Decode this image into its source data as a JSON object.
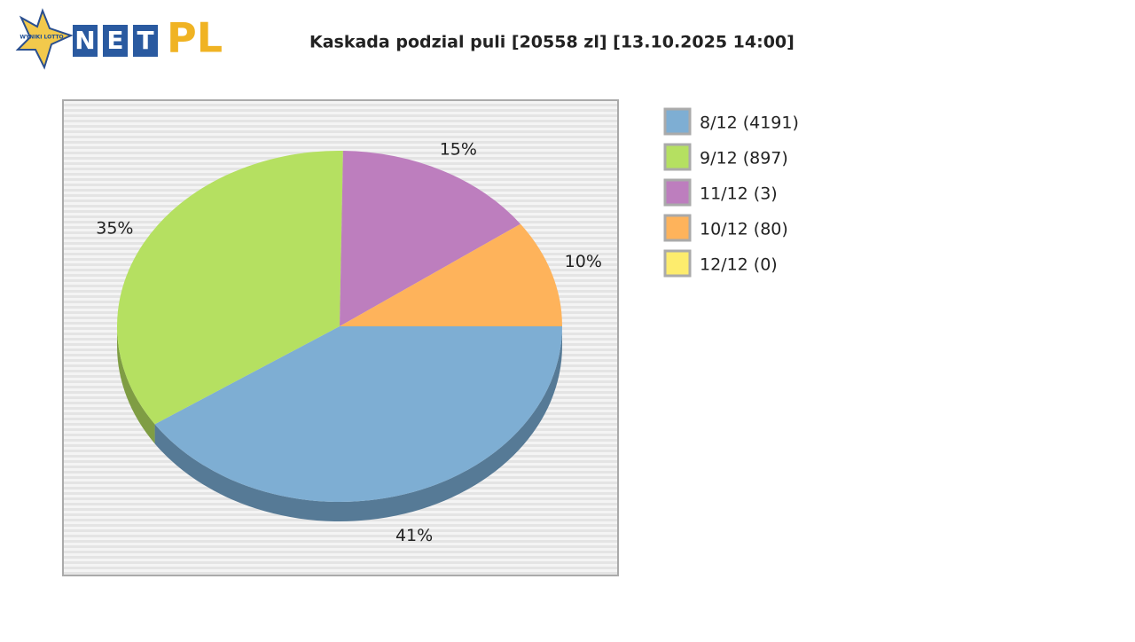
{
  "logo": {
    "badge": "WYNIKI LOTTO",
    "letters": [
      "N",
      "E",
      "T"
    ],
    "suffix": "PL"
  },
  "chart_data": {
    "type": "pie",
    "title": "Kaskada podzial puli [20558 zl] [13.10.2025 14:00]",
    "categories": [
      "8/12 (4191)",
      "9/12 (897)",
      "11/12 (3)",
      "10/12 (80)",
      "12/12 (0)"
    ],
    "values": [
      41,
      35,
      15,
      10,
      0
    ],
    "value_labels": [
      "41%",
      "35%",
      "15%",
      "10%",
      null
    ],
    "colors": [
      "#7eaed3",
      "#b5e061",
      "#bd7ebe",
      "#feb35b",
      "#fdec6d"
    ],
    "side_colors": [
      "#567a96",
      "#7f9d44",
      "#86588a",
      "#b37f40",
      "#b3a64c"
    ],
    "legend": "right"
  }
}
